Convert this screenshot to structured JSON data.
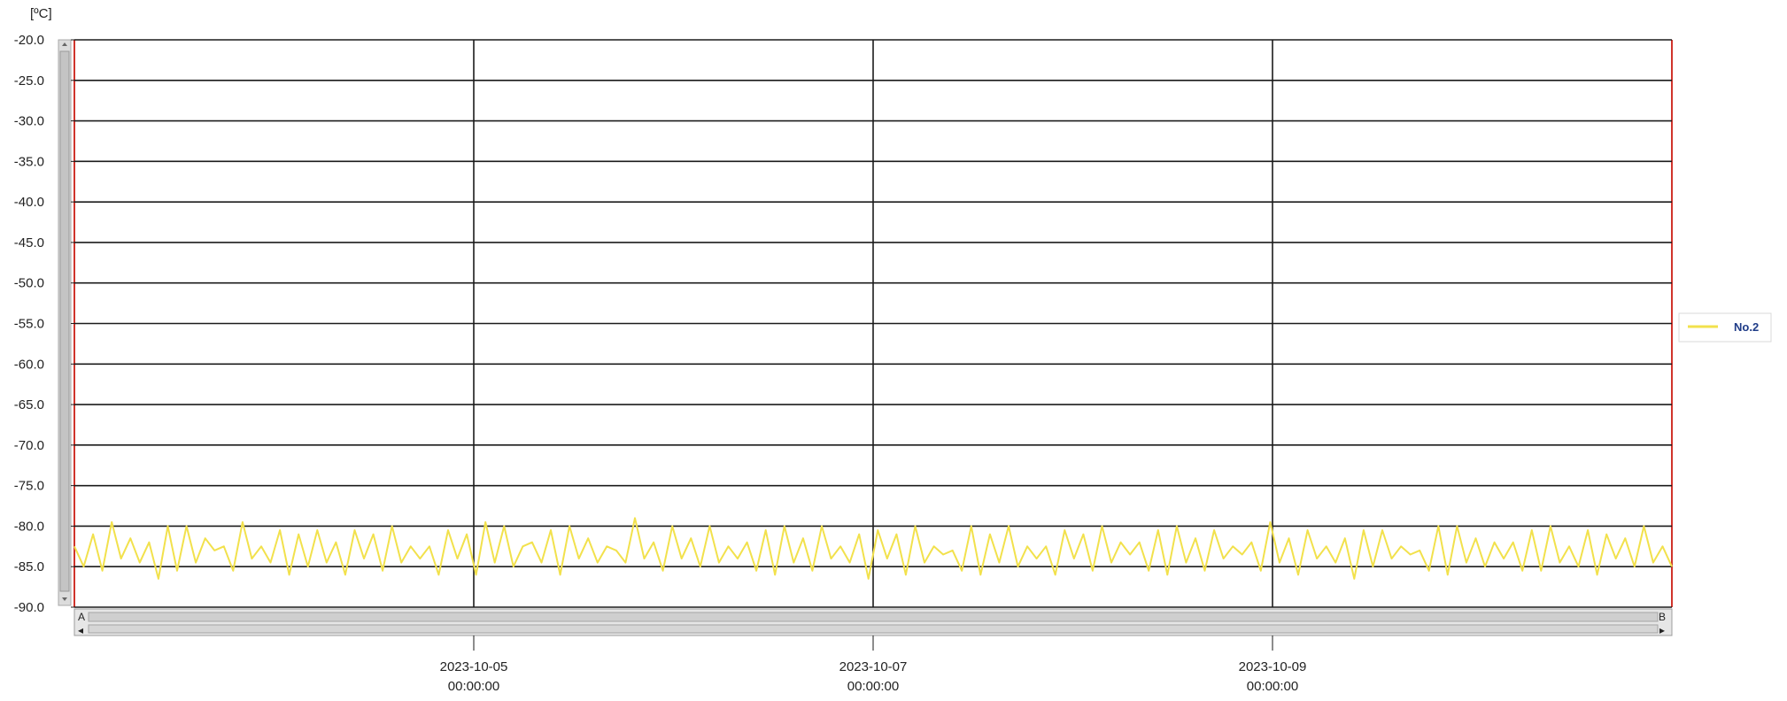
{
  "chart_data": {
    "type": "line",
    "unit_label": "[ºC]",
    "ylim": [
      -90.0,
      -20.0
    ],
    "y_ticks": [
      "-20.0",
      "-25.0",
      "-30.0",
      "-35.0",
      "-40.0",
      "-45.0",
      "-50.0",
      "-55.0",
      "-60.0",
      "-65.0",
      "-70.0",
      "-75.0",
      "-80.0",
      "-85.0",
      "-90.0"
    ],
    "x_ticks": [
      {
        "date": "2023-10-05",
        "time": "00:00:00"
      },
      {
        "date": "2023-10-07",
        "time": "00:00:00"
      },
      {
        "date": "2023-10-09",
        "time": "00:00:00"
      }
    ],
    "x_range": [
      "2023-10-03 00:00:00",
      "2023-10-11 00:00:00"
    ],
    "grid": true,
    "legend_position": "right",
    "series": [
      {
        "name": "No.2",
        "color": "#f2e14c",
        "x_start": "2023-10-03 00:00:00",
        "x_end": "2023-10-11 00:00:00",
        "values": [
          -82.5,
          -85.0,
          -81.0,
          -85.5,
          -79.5,
          -84.0,
          -81.5,
          -84.5,
          -82.0,
          -86.5,
          -80.0,
          -85.5,
          -80.0,
          -84.5,
          -81.5,
          -83.0,
          -82.5,
          -85.5,
          -79.5,
          -84.0,
          -82.5,
          -84.5,
          -80.5,
          -86.0,
          -81.0,
          -85.0,
          -80.5,
          -84.5,
          -82.0,
          -86.0,
          -80.5,
          -84.0,
          -81.0,
          -85.5,
          -80.0,
          -84.5,
          -82.5,
          -84.0,
          -82.5,
          -86.0,
          -80.5,
          -84.0,
          -81.0,
          -86.0,
          -79.5,
          -84.5,
          -80.0,
          -85.0,
          -82.5,
          -82.0,
          -84.5,
          -80.5,
          -86.0,
          -80.0,
          -84.0,
          -81.5,
          -84.5,
          -82.5,
          -83.0,
          -84.5,
          -79.0,
          -84.0,
          -82.0,
          -85.5,
          -80.0,
          -84.0,
          -81.5,
          -85.0,
          -80.0,
          -84.5,
          -82.5,
          -84.0,
          -82.0,
          -85.5,
          -80.5,
          -86.0,
          -80.0,
          -84.5,
          -81.5,
          -85.5,
          -80.0,
          -84.0,
          -82.5,
          -84.5,
          -81.0,
          -86.5,
          -80.5,
          -84.0,
          -81.0,
          -86.0,
          -80.0,
          -84.5,
          -82.5,
          -83.5,
          -83.0,
          -85.5,
          -80.0,
          -86.0,
          -81.0,
          -84.5,
          -80.0,
          -85.0,
          -82.5,
          -84.0,
          -82.5,
          -86.0,
          -80.5,
          -84.0,
          -81.0,
          -85.5,
          -80.0,
          -84.5,
          -82.0,
          -83.5,
          -82.0,
          -85.5,
          -80.5,
          -86.0,
          -80.0,
          -84.5,
          -81.5,
          -85.5,
          -80.5,
          -84.0,
          -82.5,
          -83.5,
          -82.0,
          -85.5,
          -79.5,
          -84.5,
          -81.5,
          -86.0,
          -80.5,
          -84.0,
          -82.5,
          -84.5,
          -81.5,
          -86.5,
          -80.5,
          -85.0,
          -80.5,
          -84.0,
          -82.5,
          -83.5,
          -83.0,
          -85.5,
          -80.0,
          -86.0,
          -80.0,
          -84.5,
          -81.5,
          -85.0,
          -82.0,
          -84.0,
          -82.0,
          -85.5,
          -80.5,
          -85.5,
          -80.0,
          -84.5,
          -82.5,
          -85.0,
          -80.5,
          -86.0,
          -81.0,
          -84.0,
          -81.5,
          -85.0,
          -80.0,
          -84.5,
          -82.5,
          -85.0
        ]
      }
    ]
  },
  "scrollbar": {
    "left_cap": "A",
    "right_cap": "B",
    "left_arrow": "◂",
    "right_arrow": "▸"
  }
}
